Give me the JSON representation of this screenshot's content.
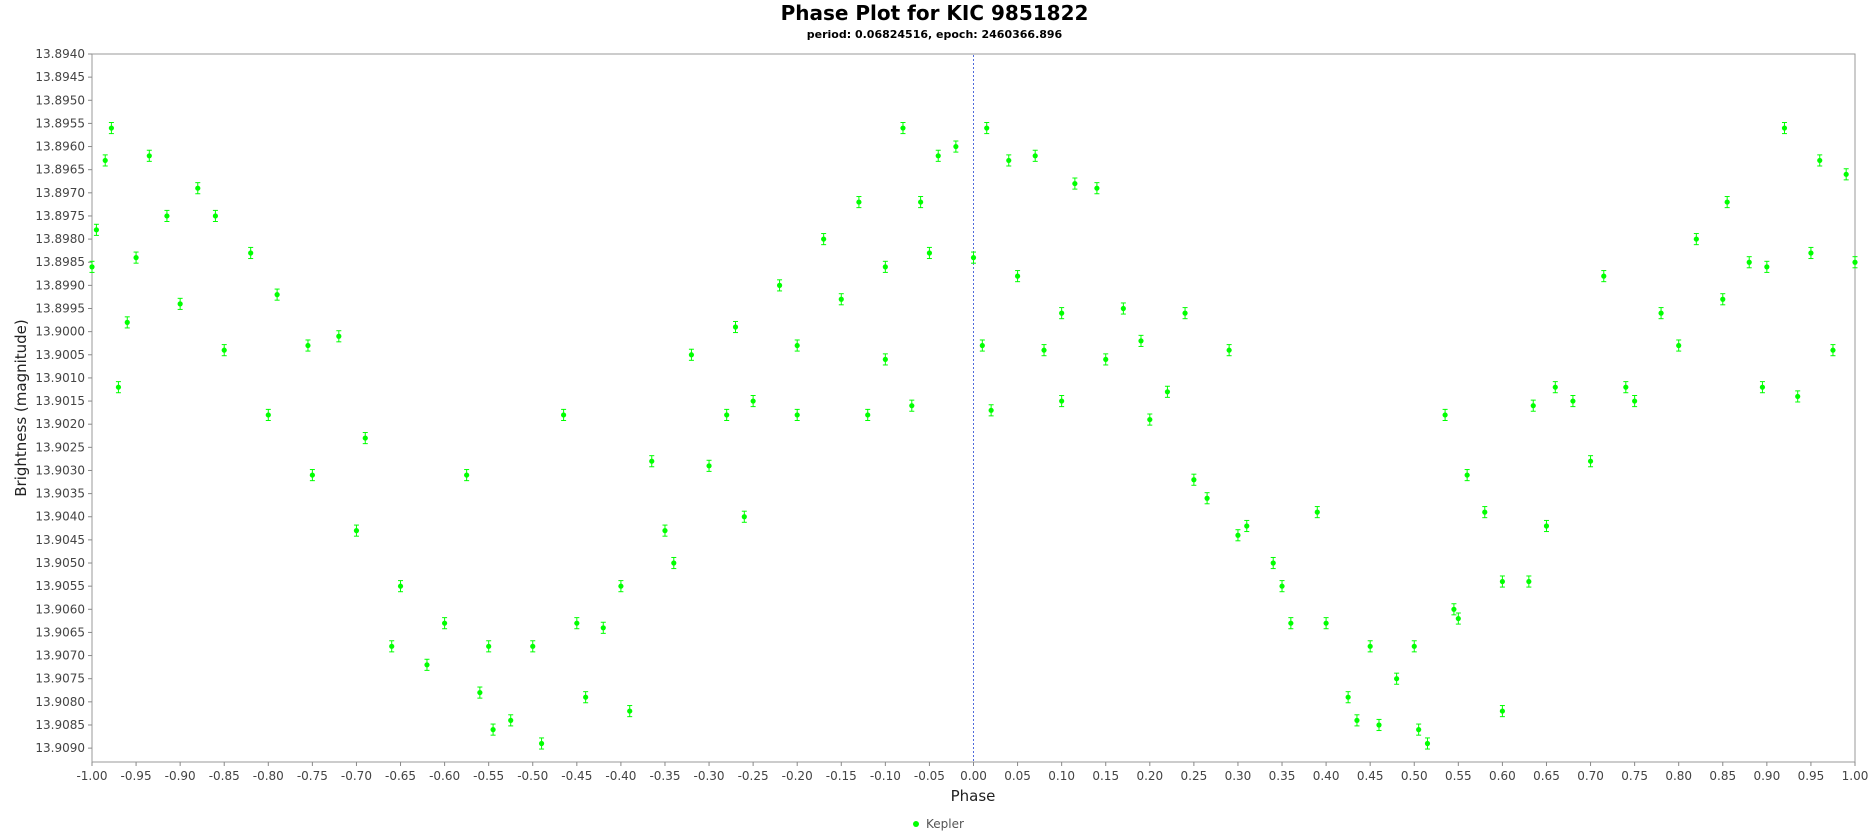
{
  "chart_data": {
    "type": "scatter",
    "title": "Phase Plot for KIC 9851822",
    "subtitle": "period: 0.06824516, epoch: 2460366.896",
    "xlabel": "Phase",
    "ylabel": "Brightness (magnitude)",
    "xlim": [
      -1.0,
      1.0
    ],
    "ylim": [
      13.894,
      13.9093
    ],
    "y_inverted": true,
    "x_ticks": [
      "-1.00",
      "-0.95",
      "-0.90",
      "-0.85",
      "-0.80",
      "-0.75",
      "-0.70",
      "-0.65",
      "-0.60",
      "-0.55",
      "-0.50",
      "-0.45",
      "-0.40",
      "-0.35",
      "-0.30",
      "-0.25",
      "-0.20",
      "-0.15",
      "-0.10",
      "-0.05",
      "0.00",
      "0.05",
      "0.10",
      "0.15",
      "0.20",
      "0.25",
      "0.30",
      "0.35",
      "0.40",
      "0.45",
      "0.50",
      "0.55",
      "0.60",
      "0.65",
      "0.70",
      "0.75",
      "0.80",
      "0.85",
      "0.90",
      "0.95",
      "1.00"
    ],
    "y_ticks": [
      "13.8940",
      "13.8945",
      "13.8950",
      "13.8955",
      "13.8960",
      "13.8965",
      "13.8970",
      "13.8975",
      "13.8980",
      "13.8985",
      "13.8990",
      "13.8995",
      "13.9000",
      "13.9005",
      "13.9010",
      "13.9015",
      "13.9020",
      "13.9025",
      "13.9030",
      "13.9035",
      "13.9040",
      "13.9045",
      "13.9050",
      "13.9055",
      "13.9060",
      "13.9065",
      "13.9070",
      "13.9075",
      "13.9080",
      "13.9085",
      "13.9090"
    ],
    "grid": false,
    "vertical_marker_x": 0.0,
    "legend": {
      "position": "bottom-center",
      "entries": [
        "Kepler"
      ]
    },
    "series": [
      {
        "name": "Kepler",
        "color": "#00ff00",
        "error_bar": 0.00012,
        "points": [
          [
            -1.0,
            13.8986
          ],
          [
            -0.95,
            13.8984
          ],
          [
            -0.9,
            13.8994
          ],
          [
            -0.85,
            13.9004
          ],
          [
            -0.8,
            13.9018
          ],
          [
            -0.75,
            13.9031
          ],
          [
            -0.7,
            13.9043
          ],
          [
            -0.65,
            13.9055
          ],
          [
            -0.6,
            13.9063
          ],
          [
            -0.55,
            13.9068
          ],
          [
            -0.5,
            13.9068
          ],
          [
            -0.45,
            13.9063
          ],
          [
            -0.4,
            13.9055
          ],
          [
            -0.35,
            13.9043
          ],
          [
            -0.3,
            13.9029
          ],
          [
            -0.25,
            13.9015
          ],
          [
            -0.2,
            13.9003
          ],
          [
            -0.15,
            13.8993
          ],
          [
            -0.1,
            13.8986
          ],
          [
            -0.05,
            13.8983
          ],
          [
            0.0,
            13.8984
          ],
          [
            0.05,
            13.8988
          ],
          [
            0.1,
            13.8996
          ],
          [
            0.15,
            13.9006
          ],
          [
            0.2,
            13.9019
          ],
          [
            0.25,
            13.9032
          ],
          [
            0.3,
            13.9044
          ],
          [
            0.35,
            13.9055
          ],
          [
            0.4,
            13.9063
          ],
          [
            0.45,
            13.9068
          ],
          [
            0.5,
            13.9068
          ],
          [
            0.55,
            13.9062
          ],
          [
            0.6,
            13.9054
          ],
          [
            0.65,
            13.9042
          ],
          [
            0.7,
            13.9028
          ],
          [
            0.75,
            13.9015
          ],
          [
            0.8,
            13.9003
          ],
          [
            0.85,
            13.8993
          ],
          [
            0.9,
            13.8986
          ],
          [
            0.95,
            13.8983
          ],
          [
            1.0,
            13.8985
          ],
          [
            -0.995,
            13.8978
          ],
          [
            -0.985,
            13.8963
          ],
          [
            -0.978,
            13.8956
          ],
          [
            -0.97,
            13.9012
          ],
          [
            -0.96,
            13.8998
          ],
          [
            -0.935,
            13.8962
          ],
          [
            -0.915,
            13.8975
          ],
          [
            -0.88,
            13.8969
          ],
          [
            -0.86,
            13.8975
          ],
          [
            -0.82,
            13.8983
          ],
          [
            -0.79,
            13.8992
          ],
          [
            -0.755,
            13.9003
          ],
          [
            -0.72,
            13.9001
          ],
          [
            -0.69,
            13.9023
          ],
          [
            -0.66,
            13.9068
          ],
          [
            -0.62,
            13.9072
          ],
          [
            -0.575,
            13.9031
          ],
          [
            -0.56,
            13.9078
          ],
          [
            -0.545,
            13.9086
          ],
          [
            -0.525,
            13.9084
          ],
          [
            -0.49,
            13.9089
          ],
          [
            -0.465,
            13.9018
          ],
          [
            -0.44,
            13.9079
          ],
          [
            -0.42,
            13.9064
          ],
          [
            -0.39,
            13.9082
          ],
          [
            -0.365,
            13.9028
          ],
          [
            -0.34,
            13.905
          ],
          [
            -0.32,
            13.9005
          ],
          [
            -0.28,
            13.9018
          ],
          [
            -0.27,
            13.8999
          ],
          [
            -0.26,
            13.904
          ],
          [
            -0.22,
            13.899
          ],
          [
            -0.2,
            13.9018
          ],
          [
            -0.17,
            13.898
          ],
          [
            -0.13,
            13.8972
          ],
          [
            -0.12,
            13.9018
          ],
          [
            -0.1,
            13.9006
          ],
          [
            -0.08,
            13.8956
          ],
          [
            -0.07,
            13.9016
          ],
          [
            -0.06,
            13.8972
          ],
          [
            -0.04,
            13.8962
          ],
          [
            -0.02,
            13.896
          ],
          [
            0.01,
            13.9003
          ],
          [
            0.015,
            13.8956
          ],
          [
            0.02,
            13.9017
          ],
          [
            0.04,
            13.8963
          ],
          [
            0.07,
            13.8962
          ],
          [
            0.08,
            13.9004
          ],
          [
            0.1,
            13.9015
          ],
          [
            0.115,
            13.8968
          ],
          [
            0.14,
            13.8969
          ],
          [
            0.17,
            13.8995
          ],
          [
            0.19,
            13.9002
          ],
          [
            0.22,
            13.9013
          ],
          [
            0.24,
            13.8996
          ],
          [
            0.265,
            13.9036
          ],
          [
            0.29,
            13.9004
          ],
          [
            0.31,
            13.9042
          ],
          [
            0.34,
            13.905
          ],
          [
            0.36,
            13.9063
          ],
          [
            0.39,
            13.9039
          ],
          [
            0.425,
            13.9079
          ],
          [
            0.435,
            13.9084
          ],
          [
            0.46,
            13.9085
          ],
          [
            0.48,
            13.9075
          ],
          [
            0.505,
            13.9086
          ],
          [
            0.515,
            13.9089
          ],
          [
            0.535,
            13.9018
          ],
          [
            0.545,
            13.906
          ],
          [
            0.56,
            13.9031
          ],
          [
            0.58,
            13.9039
          ],
          [
            0.6,
            13.9082
          ],
          [
            0.63,
            13.9054
          ],
          [
            0.635,
            13.9016
          ],
          [
            0.66,
            13.9012
          ],
          [
            0.68,
            13.9015
          ],
          [
            0.715,
            13.8988
          ],
          [
            0.74,
            13.9012
          ],
          [
            0.78,
            13.8996
          ],
          [
            0.82,
            13.898
          ],
          [
            0.855,
            13.8972
          ],
          [
            0.88,
            13.8985
          ],
          [
            0.895,
            13.9012
          ],
          [
            0.92,
            13.8956
          ],
          [
            0.935,
            13.9014
          ],
          [
            0.96,
            13.8963
          ],
          [
            0.975,
            13.9004
          ],
          [
            0.99,
            13.8966
          ]
        ]
      }
    ]
  }
}
